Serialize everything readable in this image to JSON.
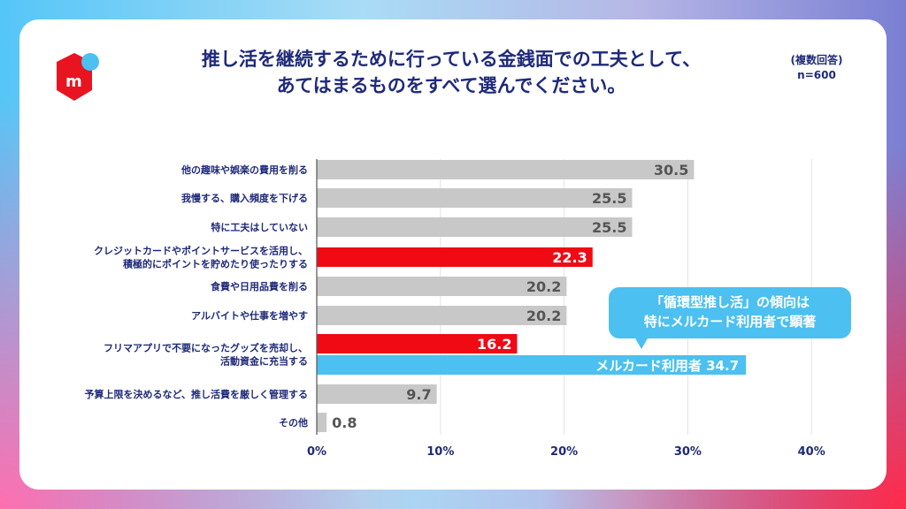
{
  "title_lines": [
    "推し活を継続するために行っている金銭面での工夫として、",
    "あてはまるものをすべて選んでください。"
  ],
  "note": {
    "multi": "(複数回答)",
    "n": "n=600"
  },
  "logo": {
    "letter": "m",
    "colors": {
      "red": "#e8141f",
      "blue": "#4cc0f0"
    }
  },
  "callout": {
    "lines": [
      "「循環型推し活」の傾向は",
      "特にメルカード利用者で顕著"
    ]
  },
  "colors": {
    "gray": "#c8c8c8",
    "red": "#f00a14",
    "blue": "#4cc0f0",
    "label": "#1f2a7a",
    "value": "#555555"
  },
  "chart_data": {
    "type": "bar",
    "orientation": "horizontal",
    "unit": "%",
    "xlim": [
      0,
      40
    ],
    "ticks": [
      "0%",
      "10%",
      "20%",
      "30%",
      "40%"
    ],
    "grid": true,
    "categories": [
      [
        "他の趣味や娯楽の費用を削る"
      ],
      [
        "我慢する、購入頻度を下げる"
      ],
      [
        "特に工夫はしていない"
      ],
      [
        "クレジットカードやポイントサービスを活用し、",
        "積極的にポイントを貯めたり使ったりする"
      ],
      [
        "食費や日用品費を削る"
      ],
      [
        "アルバイトや仕事を増やす"
      ],
      [
        "フリマアプリで不要になったグッズを売却し、",
        "活動資金に充当する"
      ],
      [
        "予算上限を決めるなど、推し活費を厳しく管理する"
      ],
      [
        "その他"
      ]
    ],
    "values": [
      30.5,
      25.5,
      25.5,
      22.3,
      20.2,
      20.2,
      16.2,
      9.7,
      0.8
    ],
    "highlight": [
      false,
      false,
      false,
      true,
      false,
      false,
      true,
      false,
      false
    ],
    "extra_bar": {
      "category_index": 6,
      "name": "メルカード利用者",
      "value": 34.7
    }
  }
}
